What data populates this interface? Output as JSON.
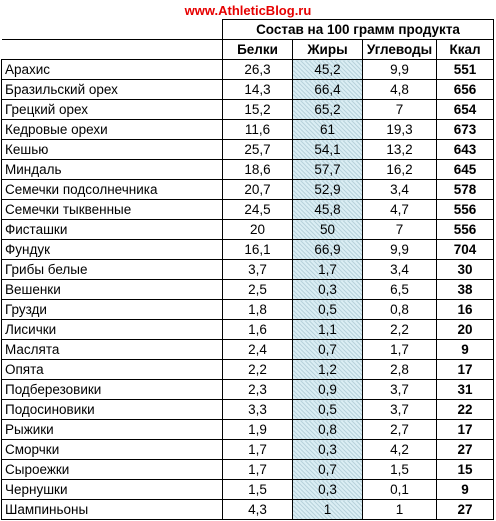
{
  "site_url": "www.AthleticBlog.ru",
  "table": {
    "group_header": "Состав на 100 грамм продукта",
    "columns": [
      "Белки",
      "Жиры",
      "Углеводы",
      "Ккал"
    ],
    "rows": [
      {
        "name": "Арахис",
        "protein": "26,3",
        "fat": "45,2",
        "carbs": "9,9",
        "kcal": "551"
      },
      {
        "name": "Бразильский орех",
        "protein": "14,3",
        "fat": "66,4",
        "carbs": "4,8",
        "kcal": "656"
      },
      {
        "name": "Грецкий орех",
        "protein": "15,2",
        "fat": "65,2",
        "carbs": "7",
        "kcal": "654"
      },
      {
        "name": "Кедровые орехи",
        "protein": "11,6",
        "fat": "61",
        "carbs": "19,3",
        "kcal": "673"
      },
      {
        "name": "Кешью",
        "protein": "25,7",
        "fat": "54,1",
        "carbs": "13,2",
        "kcal": "643"
      },
      {
        "name": "Миндаль",
        "protein": "18,6",
        "fat": "57,7",
        "carbs": "16,2",
        "kcal": "645"
      },
      {
        "name": "Семечки подсолнечника",
        "protein": "20,7",
        "fat": "52,9",
        "carbs": "3,4",
        "kcal": "578"
      },
      {
        "name": "Семечки тыквенные",
        "protein": "24,5",
        "fat": "45,8",
        "carbs": "4,7",
        "kcal": "556"
      },
      {
        "name": "Фисташки",
        "protein": "20",
        "fat": "50",
        "carbs": "7",
        "kcal": "556"
      },
      {
        "name": "Фундук",
        "protein": "16,1",
        "fat": "66,9",
        "carbs": "9,9",
        "kcal": "704"
      },
      {
        "name": "Грибы белые",
        "protein": "3,7",
        "fat": "1,7",
        "carbs": "3,4",
        "kcal": "30"
      },
      {
        "name": "Вешенки",
        "protein": "2,5",
        "fat": "0,3",
        "carbs": "6,5",
        "kcal": "38"
      },
      {
        "name": "Грузди",
        "protein": "1,8",
        "fat": "0,5",
        "carbs": "0,8",
        "kcal": "16"
      },
      {
        "name": "Лисички",
        "protein": "1,6",
        "fat": "1,1",
        "carbs": "2,2",
        "kcal": "20"
      },
      {
        "name": "Маслята",
        "protein": "2,4",
        "fat": "0,7",
        "carbs": "1,7",
        "kcal": "9"
      },
      {
        "name": "Опята",
        "protein": "2,2",
        "fat": "1,2",
        "carbs": "2,8",
        "kcal": "17"
      },
      {
        "name": "Подберезовики",
        "protein": "2,3",
        "fat": "0,9",
        "carbs": "3,7",
        "kcal": "31"
      },
      {
        "name": "Подосиновики",
        "protein": "3,3",
        "fat": "0,5",
        "carbs": "3,7",
        "kcal": "22"
      },
      {
        "name": "Рыжики",
        "protein": "1,9",
        "fat": "0,8",
        "carbs": "2,7",
        "kcal": "17"
      },
      {
        "name": "Сморчки",
        "protein": "1,7",
        "fat": "0,3",
        "carbs": "4,2",
        "kcal": "27"
      },
      {
        "name": "Сыроежки",
        "protein": "1,7",
        "fat": "0,7",
        "carbs": "1,5",
        "kcal": "15"
      },
      {
        "name": "Чернушки",
        "protein": "1,5",
        "fat": "0,3",
        "carbs": "0,1",
        "kcal": "9"
      },
      {
        "name": "Шампиньоны",
        "protein": "4,3",
        "fat": "1",
        "carbs": "1",
        "kcal": "27"
      }
    ]
  },
  "colors": {
    "url_red": "#e60000",
    "fat_column_fill": "#dbeef4",
    "grid": "#000000"
  }
}
